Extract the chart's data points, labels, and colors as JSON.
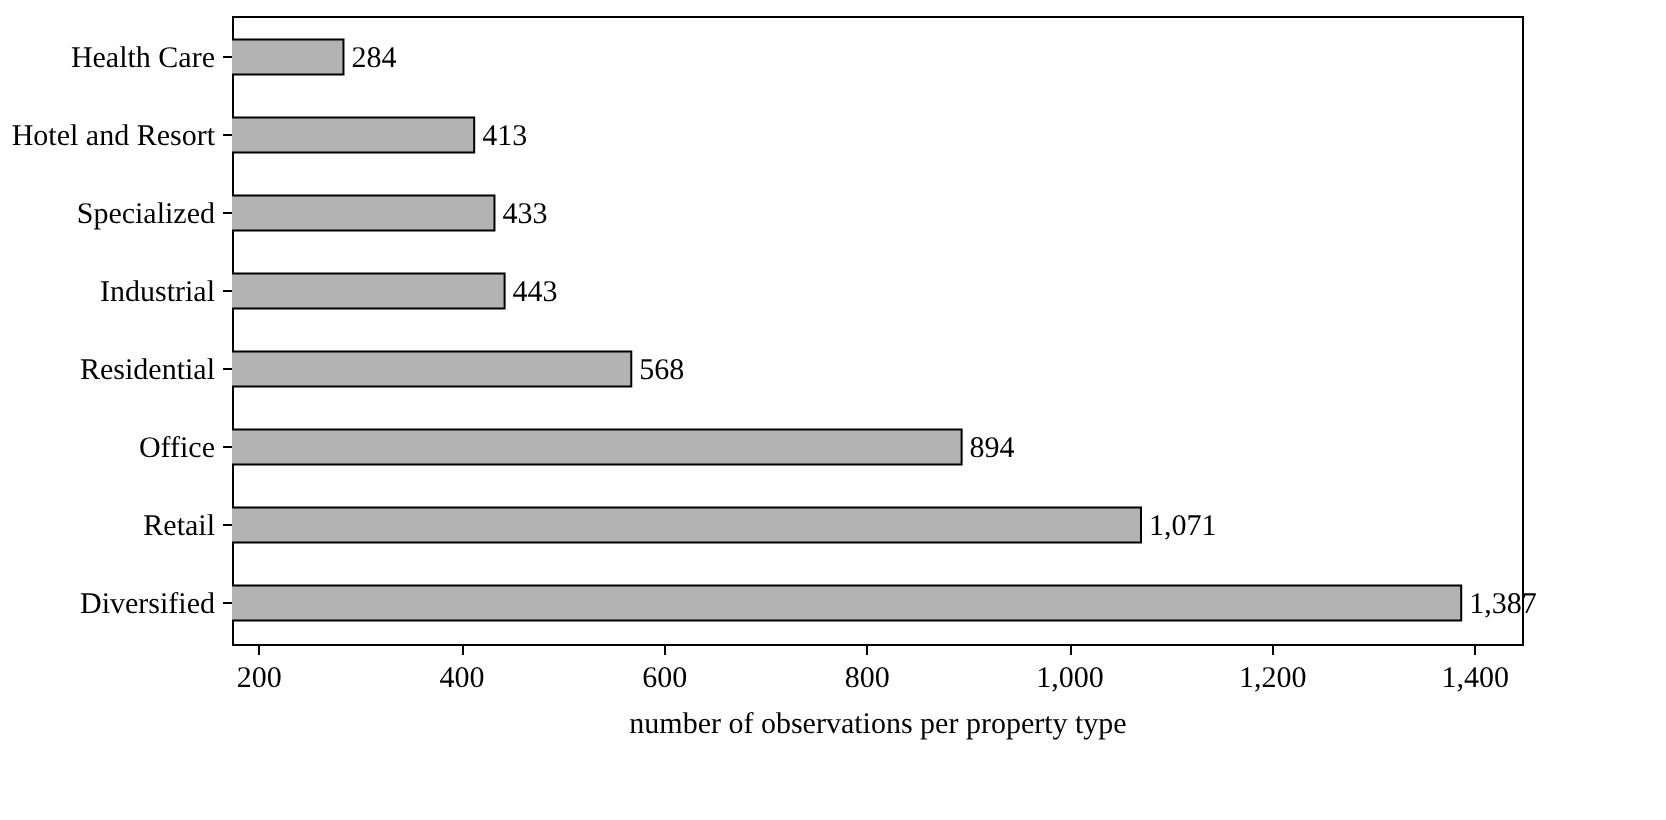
{
  "chart_data": {
    "type": "bar",
    "orientation": "horizontal",
    "xlabel": "number of observations per property type",
    "categories": [
      "Health Care",
      "Hotel and Resort",
      "Specialized",
      "Industrial",
      "Residential",
      "Office",
      "Retail",
      "Diversified"
    ],
    "values": [
      284,
      413,
      433,
      443,
      568,
      894,
      1071,
      1387
    ],
    "color": "#b3b3b3",
    "xlim": [
      174,
      1447
    ],
    "xticks": [
      200,
      400,
      600,
      800,
      {
        "value": 1000,
        "label": "1,000"
      },
      {
        "value": 1200,
        "label": "1,200"
      },
      {
        "value": 1400,
        "label": "1,400"
      }
    ],
    "value_labels": [
      "284",
      "413",
      "433",
      "443",
      "568",
      "894",
      "1,071",
      "1,387"
    ]
  }
}
